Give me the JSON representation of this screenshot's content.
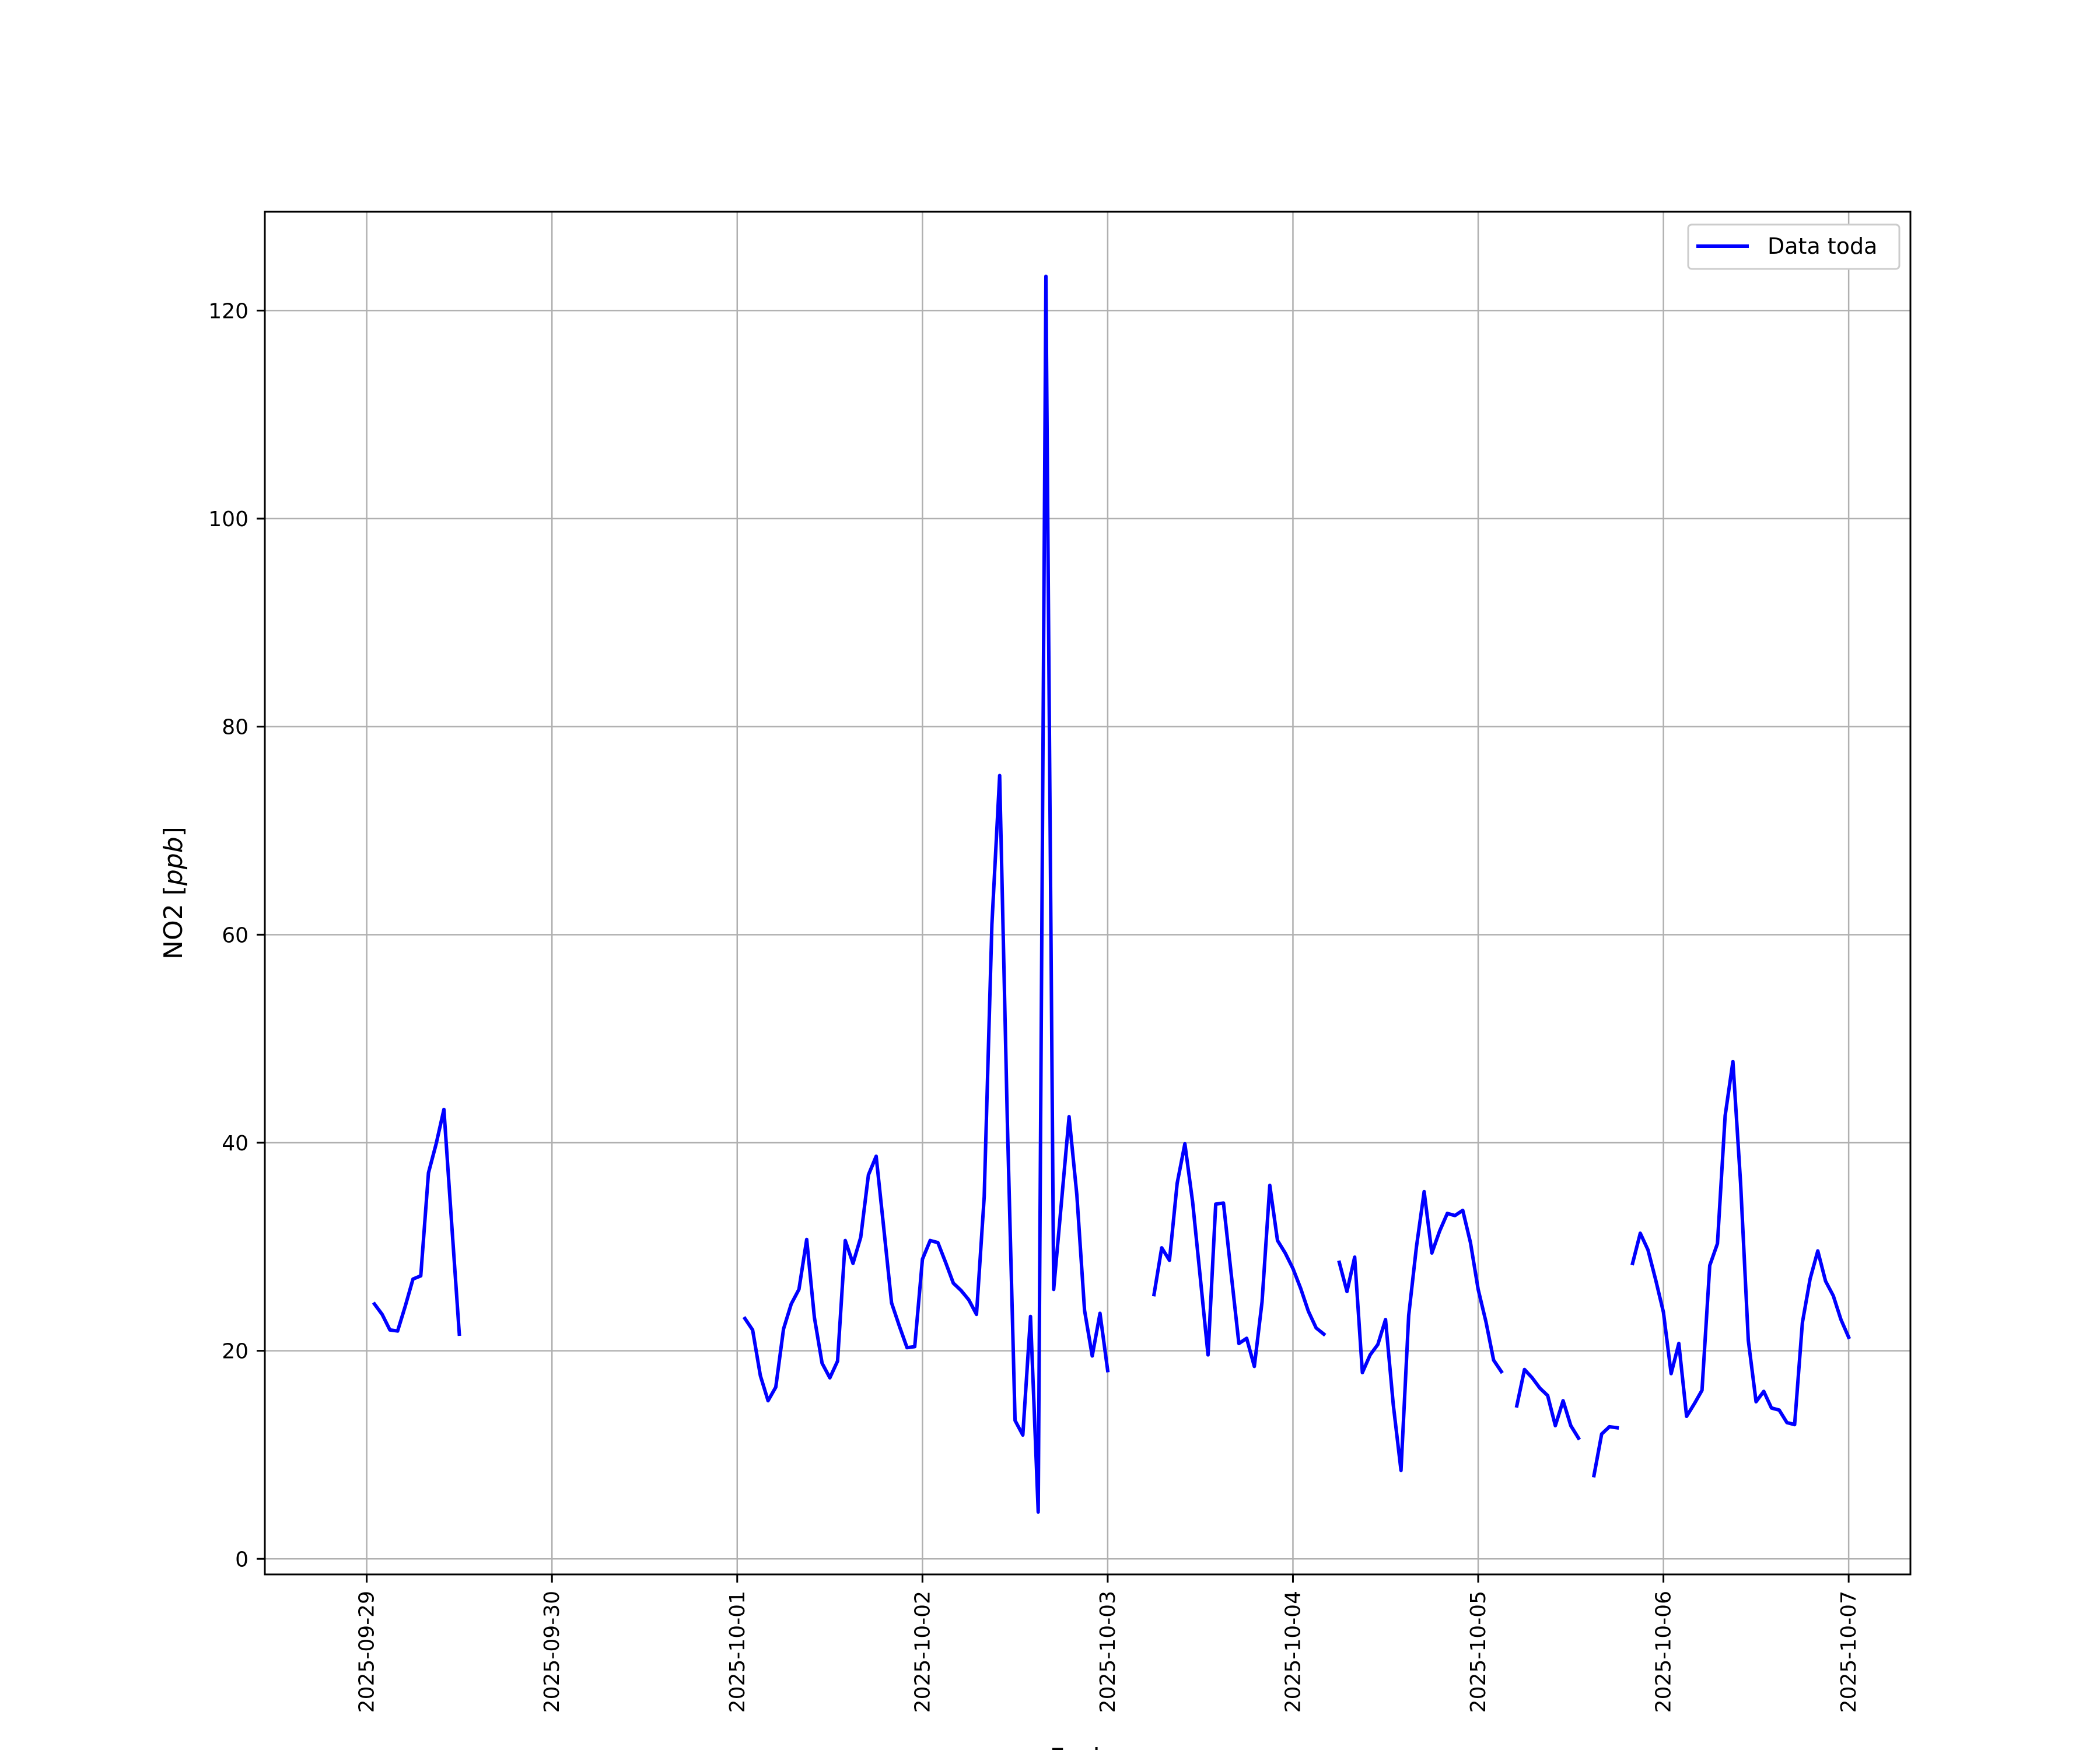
{
  "chart_data": {
    "type": "line",
    "xlabel": "Fecha",
    "ylabel": "NO2 [ppb]",
    "ylabel_parts": {
      "prefix": "NO2 [",
      "unit": "ppb",
      "suffix": "]"
    },
    "x_ticks": [
      "2025-09-29",
      "2025-09-30",
      "2025-10-01",
      "2025-10-02",
      "2025-10-03",
      "2025-10-04",
      "2025-10-05",
      "2025-10-06",
      "2025-10-07"
    ],
    "y_ticks": [
      0,
      20,
      40,
      60,
      80,
      100,
      120
    ],
    "y_tick_labels": [
      "0",
      "20",
      "40",
      "60",
      "80",
      "100",
      "120"
    ],
    "xlim": [
      "2025-09-28T10:48",
      "2025-10-07T08:00"
    ],
    "ylim": [
      -1.5,
      129.5
    ],
    "grid": true,
    "legend_position": "top-right",
    "series": [
      {
        "name": "Data toda",
        "color": "#0000ff",
        "segments": [
          [
            [
              "2025-09-29T01:00",
              24.5
            ],
            [
              "2025-09-29T02:00",
              23.5
            ],
            [
              "2025-09-29T03:00",
              22.0
            ],
            [
              "2025-09-29T04:00",
              21.9
            ],
            [
              "2025-09-29T05:00",
              24.3
            ],
            [
              "2025-09-29T06:00",
              26.9
            ],
            [
              "2025-09-29T07:00",
              27.2
            ],
            [
              "2025-09-29T08:00",
              37.1
            ],
            [
              "2025-09-29T09:00",
              39.9
            ],
            [
              "2025-09-29T10:00",
              43.2
            ],
            [
              "2025-09-29T11:00",
              32.3
            ],
            [
              "2025-09-29T12:00",
              21.6
            ]
          ],
          [
            [
              "2025-10-01T01:00",
              23.1
            ],
            [
              "2025-10-01T02:00",
              22.0
            ],
            [
              "2025-10-01T03:00",
              17.6
            ],
            [
              "2025-10-01T04:00",
              15.2
            ],
            [
              "2025-10-01T05:00",
              16.5
            ],
            [
              "2025-10-01T06:00",
              22.1
            ],
            [
              "2025-10-01T07:00",
              24.5
            ],
            [
              "2025-10-01T08:00",
              25.9
            ],
            [
              "2025-10-01T09:00",
              30.7
            ],
            [
              "2025-10-01T10:00",
              23.2
            ],
            [
              "2025-10-01T11:00",
              18.8
            ],
            [
              "2025-10-01T12:00",
              17.4
            ],
            [
              "2025-10-01T13:00",
              19.0
            ],
            [
              "2025-10-01T14:00",
              30.6
            ],
            [
              "2025-10-01T15:00",
              28.4
            ],
            [
              "2025-10-01T16:00",
              30.9
            ],
            [
              "2025-10-01T17:00",
              36.9
            ],
            [
              "2025-10-01T18:00",
              38.7
            ],
            [
              "2025-10-01T19:00",
              31.7
            ],
            [
              "2025-10-01T20:00",
              24.6
            ],
            [
              "2025-10-01T21:00",
              22.4
            ],
            [
              "2025-10-01T22:00",
              20.3
            ],
            [
              "2025-10-01T23:00",
              20.4
            ],
            [
              "2025-10-02T00:00",
              28.8
            ],
            [
              "2025-10-02T01:00",
              30.6
            ],
            [
              "2025-10-02T02:00",
              30.4
            ],
            [
              "2025-10-02T03:00",
              28.5
            ],
            [
              "2025-10-02T04:00",
              26.5
            ],
            [
              "2025-10-02T05:00",
              25.8
            ],
            [
              "2025-10-02T06:00",
              24.9
            ],
            [
              "2025-10-02T07:00",
              23.5
            ],
            [
              "2025-10-02T08:00",
              34.8
            ],
            [
              "2025-10-02T09:00",
              61.0
            ],
            [
              "2025-10-02T10:00",
              75.3
            ],
            [
              "2025-10-02T11:00",
              42.0
            ],
            [
              "2025-10-02T12:00",
              13.3
            ],
            [
              "2025-10-02T13:00",
              11.9
            ],
            [
              "2025-10-02T14:00",
              23.3
            ],
            [
              "2025-10-02T15:00",
              4.5
            ],
            [
              "2025-10-02T16:00",
              123.3
            ],
            [
              "2025-10-02T17:00",
              25.9
            ],
            [
              "2025-10-02T18:00",
              34.2
            ],
            [
              "2025-10-02T19:00",
              42.5
            ],
            [
              "2025-10-02T20:00",
              35.0
            ],
            [
              "2025-10-02T21:00",
              23.9
            ],
            [
              "2025-10-02T22:00",
              19.5
            ],
            [
              "2025-10-02T23:00",
              23.6
            ],
            [
              "2025-10-03T00:00",
              18.1
            ]
          ],
          [
            [
              "2025-10-03T06:00",
              25.4
            ],
            [
              "2025-10-03T07:00",
              29.9
            ],
            [
              "2025-10-03T08:00",
              28.7
            ],
            [
              "2025-10-03T09:00",
              36.1
            ],
            [
              "2025-10-03T10:00",
              39.9
            ],
            [
              "2025-10-03T11:00",
              34.3
            ],
            [
              "2025-10-03T12:00",
              27.0
            ],
            [
              "2025-10-03T13:00",
              19.6
            ],
            [
              "2025-10-03T14:00",
              34.1
            ],
            [
              "2025-10-03T15:00",
              34.2
            ],
            [
              "2025-10-03T16:00",
              27.4
            ],
            [
              "2025-10-03T17:00",
              20.7
            ],
            [
              "2025-10-03T18:00",
              21.2
            ],
            [
              "2025-10-03T19:00",
              18.5
            ],
            [
              "2025-10-03T20:00",
              24.7
            ],
            [
              "2025-10-03T21:00",
              35.9
            ],
            [
              "2025-10-03T22:00",
              30.6
            ],
            [
              "2025-10-03T23:00",
              29.4
            ],
            [
              "2025-10-04T00:00",
              27.9
            ],
            [
              "2025-10-04T01:00",
              26.0
            ],
            [
              "2025-10-04T02:00",
              23.8
            ],
            [
              "2025-10-04T03:00",
              22.2
            ],
            [
              "2025-10-04T04:00",
              21.6
            ]
          ],
          [
            [
              "2025-10-04T06:00",
              28.5
            ],
            [
              "2025-10-04T07:00",
              25.7
            ],
            [
              "2025-10-04T08:00",
              29.0
            ],
            [
              "2025-10-04T09:00",
              17.9
            ],
            [
              "2025-10-04T10:00",
              19.6
            ],
            [
              "2025-10-04T11:00",
              20.6
            ],
            [
              "2025-10-04T12:00",
              23.0
            ],
            [
              "2025-10-04T13:00",
              14.8
            ],
            [
              "2025-10-04T14:00",
              8.5
            ],
            [
              "2025-10-04T15:00",
              23.4
            ],
            [
              "2025-10-04T16:00",
              30.0
            ],
            [
              "2025-10-04T17:00",
              35.3
            ],
            [
              "2025-10-04T18:00",
              29.4
            ],
            [
              "2025-10-04T19:00",
              31.5
            ],
            [
              "2025-10-04T20:00",
              33.2
            ],
            [
              "2025-10-04T21:00",
              33.0
            ],
            [
              "2025-10-04T22:00",
              33.5
            ],
            [
              "2025-10-04T23:00",
              30.4
            ],
            [
              "2025-10-05T00:00",
              25.9
            ],
            [
              "2025-10-05T01:00",
              22.8
            ],
            [
              "2025-10-05T02:00",
              19.1
            ],
            [
              "2025-10-05T03:00",
              18.0
            ]
          ],
          [
            [
              "2025-10-05T05:00",
              14.7
            ],
            [
              "2025-10-05T06:00",
              18.2
            ],
            [
              "2025-10-05T07:00",
              17.4
            ],
            [
              "2025-10-05T08:00",
              16.4
            ],
            [
              "2025-10-05T09:00",
              15.7
            ],
            [
              "2025-10-05T10:00",
              12.8
            ],
            [
              "2025-10-05T11:00",
              15.2
            ],
            [
              "2025-10-05T12:00",
              12.8
            ],
            [
              "2025-10-05T13:00",
              11.6
            ]
          ],
          [
            [
              "2025-10-05T15:00",
              8.0
            ],
            [
              "2025-10-05T16:00",
              12.0
            ],
            [
              "2025-10-05T17:00",
              12.7
            ],
            [
              "2025-10-05T18:00",
              12.6
            ]
          ],
          [
            [
              "2025-10-05T20:00",
              28.4
            ],
            [
              "2025-10-05T21:00",
              31.3
            ],
            [
              "2025-10-05T22:00",
              29.7
            ],
            [
              "2025-10-05T23:00",
              26.8
            ],
            [
              "2025-10-06T00:00",
              23.7
            ],
            [
              "2025-10-06T01:00",
              17.8
            ],
            [
              "2025-10-06T02:00",
              20.7
            ],
            [
              "2025-10-06T03:00",
              13.7
            ],
            [
              "2025-10-06T04:00",
              14.9
            ],
            [
              "2025-10-06T05:00",
              16.2
            ],
            [
              "2025-10-06T06:00",
              28.2
            ],
            [
              "2025-10-06T07:00",
              30.3
            ],
            [
              "2025-10-06T08:00",
              42.6
            ],
            [
              "2025-10-06T09:00",
              47.8
            ],
            [
              "2025-10-06T10:00",
              36.1
            ],
            [
              "2025-10-06T11:00",
              21.0
            ],
            [
              "2025-10-06T12:00",
              15.1
            ],
            [
              "2025-10-06T13:00",
              16.1
            ],
            [
              "2025-10-06T14:00",
              14.5
            ],
            [
              "2025-10-06T15:00",
              14.3
            ],
            [
              "2025-10-06T16:00",
              13.1
            ],
            [
              "2025-10-06T17:00",
              12.9
            ],
            [
              "2025-10-06T18:00",
              22.7
            ],
            [
              "2025-10-06T19:00",
              26.9
            ],
            [
              "2025-10-06T20:00",
              29.6
            ],
            [
              "2025-10-06T21:00",
              26.7
            ],
            [
              "2025-10-06T22:00",
              25.3
            ],
            [
              "2025-10-06T23:00",
              23.0
            ],
            [
              "2025-10-07T00:00",
              21.3
            ]
          ]
        ]
      }
    ]
  }
}
